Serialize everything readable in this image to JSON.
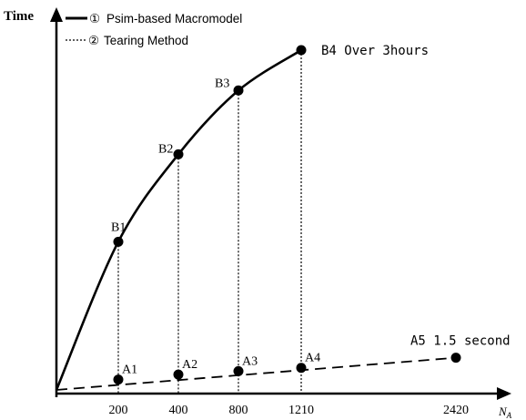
{
  "chart_data": {
    "type": "line",
    "title": "",
    "ylabel": "Time",
    "xlabel": "N",
    "xlabel_subscript": "A",
    "x_ticks": [
      "200",
      "400",
      "800",
      "1210",
      "2420"
    ],
    "legend": {
      "placement": "top-left",
      "entries": [
        {
          "marker": "①",
          "label": "Psim-based Macromodel",
          "style": "solid"
        },
        {
          "marker": "②",
          "label": "Tearing Method",
          "style": "dotted"
        }
      ]
    },
    "series": [
      {
        "key": "B",
        "style": "solid",
        "points": [
          {
            "x": "200",
            "label": "B1",
            "value": 0.43
          },
          {
            "x": "400",
            "label": "B2",
            "value": 0.69
          },
          {
            "x": "800",
            "label": "B3",
            "value": 0.88
          },
          {
            "x": "1210",
            "label": "B4",
            "value": 1.0,
            "annotation": "B4 Over 3hours"
          }
        ]
      },
      {
        "key": "A",
        "style": "dashed",
        "points": [
          {
            "x": "200",
            "label": "A1",
            "value": 0.02
          },
          {
            "x": "400",
            "label": "A2",
            "value": 0.035
          },
          {
            "x": "800",
            "label": "A3",
            "value": 0.045
          },
          {
            "x": "1210",
            "label": "A4",
            "value": 0.055
          },
          {
            "x": "2420",
            "label": "A5",
            "value": 0.085,
            "annotation": "A5 1.5 second"
          }
        ]
      }
    ],
    "grid": false,
    "colors": {
      "line": "#000000",
      "background": "#ffffff"
    }
  }
}
